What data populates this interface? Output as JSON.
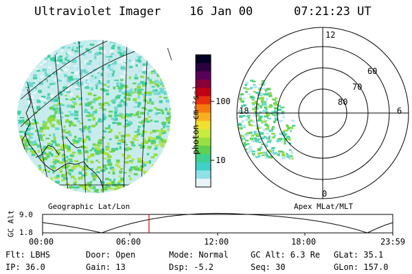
{
  "header": {
    "instrument": "Ultraviolet Imager",
    "date": "16 Jan 00",
    "time": "07:21:23 UT"
  },
  "colorbar": {
    "unit": "photon cm⁻²s⁻¹",
    "ticks": [
      "100",
      "10"
    ],
    "colors": [
      "#000022",
      "#2b0040",
      "#5a0058",
      "#8a0038",
      "#c00014",
      "#e83010",
      "#f47a10",
      "#f8b020",
      "#f0e030",
      "#c8ec40",
      "#98e040",
      "#60d050",
      "#40d090",
      "#40d0c8",
      "#90e0e8",
      "#e8f4f8"
    ]
  },
  "geo_panel": {
    "label": "Geographic Lat/Lon"
  },
  "polar_panel": {
    "label": "Apex MLat/MLT",
    "mlt_labels": {
      "top": "12",
      "left": "18",
      "right": "6",
      "bottom": "0"
    },
    "lat_labels": [
      "60",
      "70",
      "80"
    ]
  },
  "gc_alt_plot": {
    "ylabel": "GC Alt",
    "y_ticks": [
      "9.0",
      "1.8"
    ],
    "x_ticks": [
      "00:00",
      "06:00",
      "12:00",
      "18:00",
      "23:59"
    ],
    "marker_time": "07:21",
    "marker_color": "#dd0000"
  },
  "status": {
    "row1": [
      {
        "key": "flt",
        "text": "Flt: LBHS"
      },
      {
        "key": "door",
        "text": "Door: Open"
      },
      {
        "key": "mode",
        "text": "Mode: Normal"
      },
      {
        "key": "gcalt",
        "text": "GC Alt: 6.3 Re"
      },
      {
        "key": "glat",
        "text": "GLat:  35.1"
      }
    ],
    "row2": [
      {
        "key": "ip",
        "text": "IP: 36.0"
      },
      {
        "key": "gain",
        "text": "Gain: 13"
      },
      {
        "key": "dsp",
        "text": "Dsp:   -5.2"
      },
      {
        "key": "seq",
        "text": "Seq: 30"
      },
      {
        "key": "glon",
        "text": "GLon: 157.0"
      }
    ]
  }
}
